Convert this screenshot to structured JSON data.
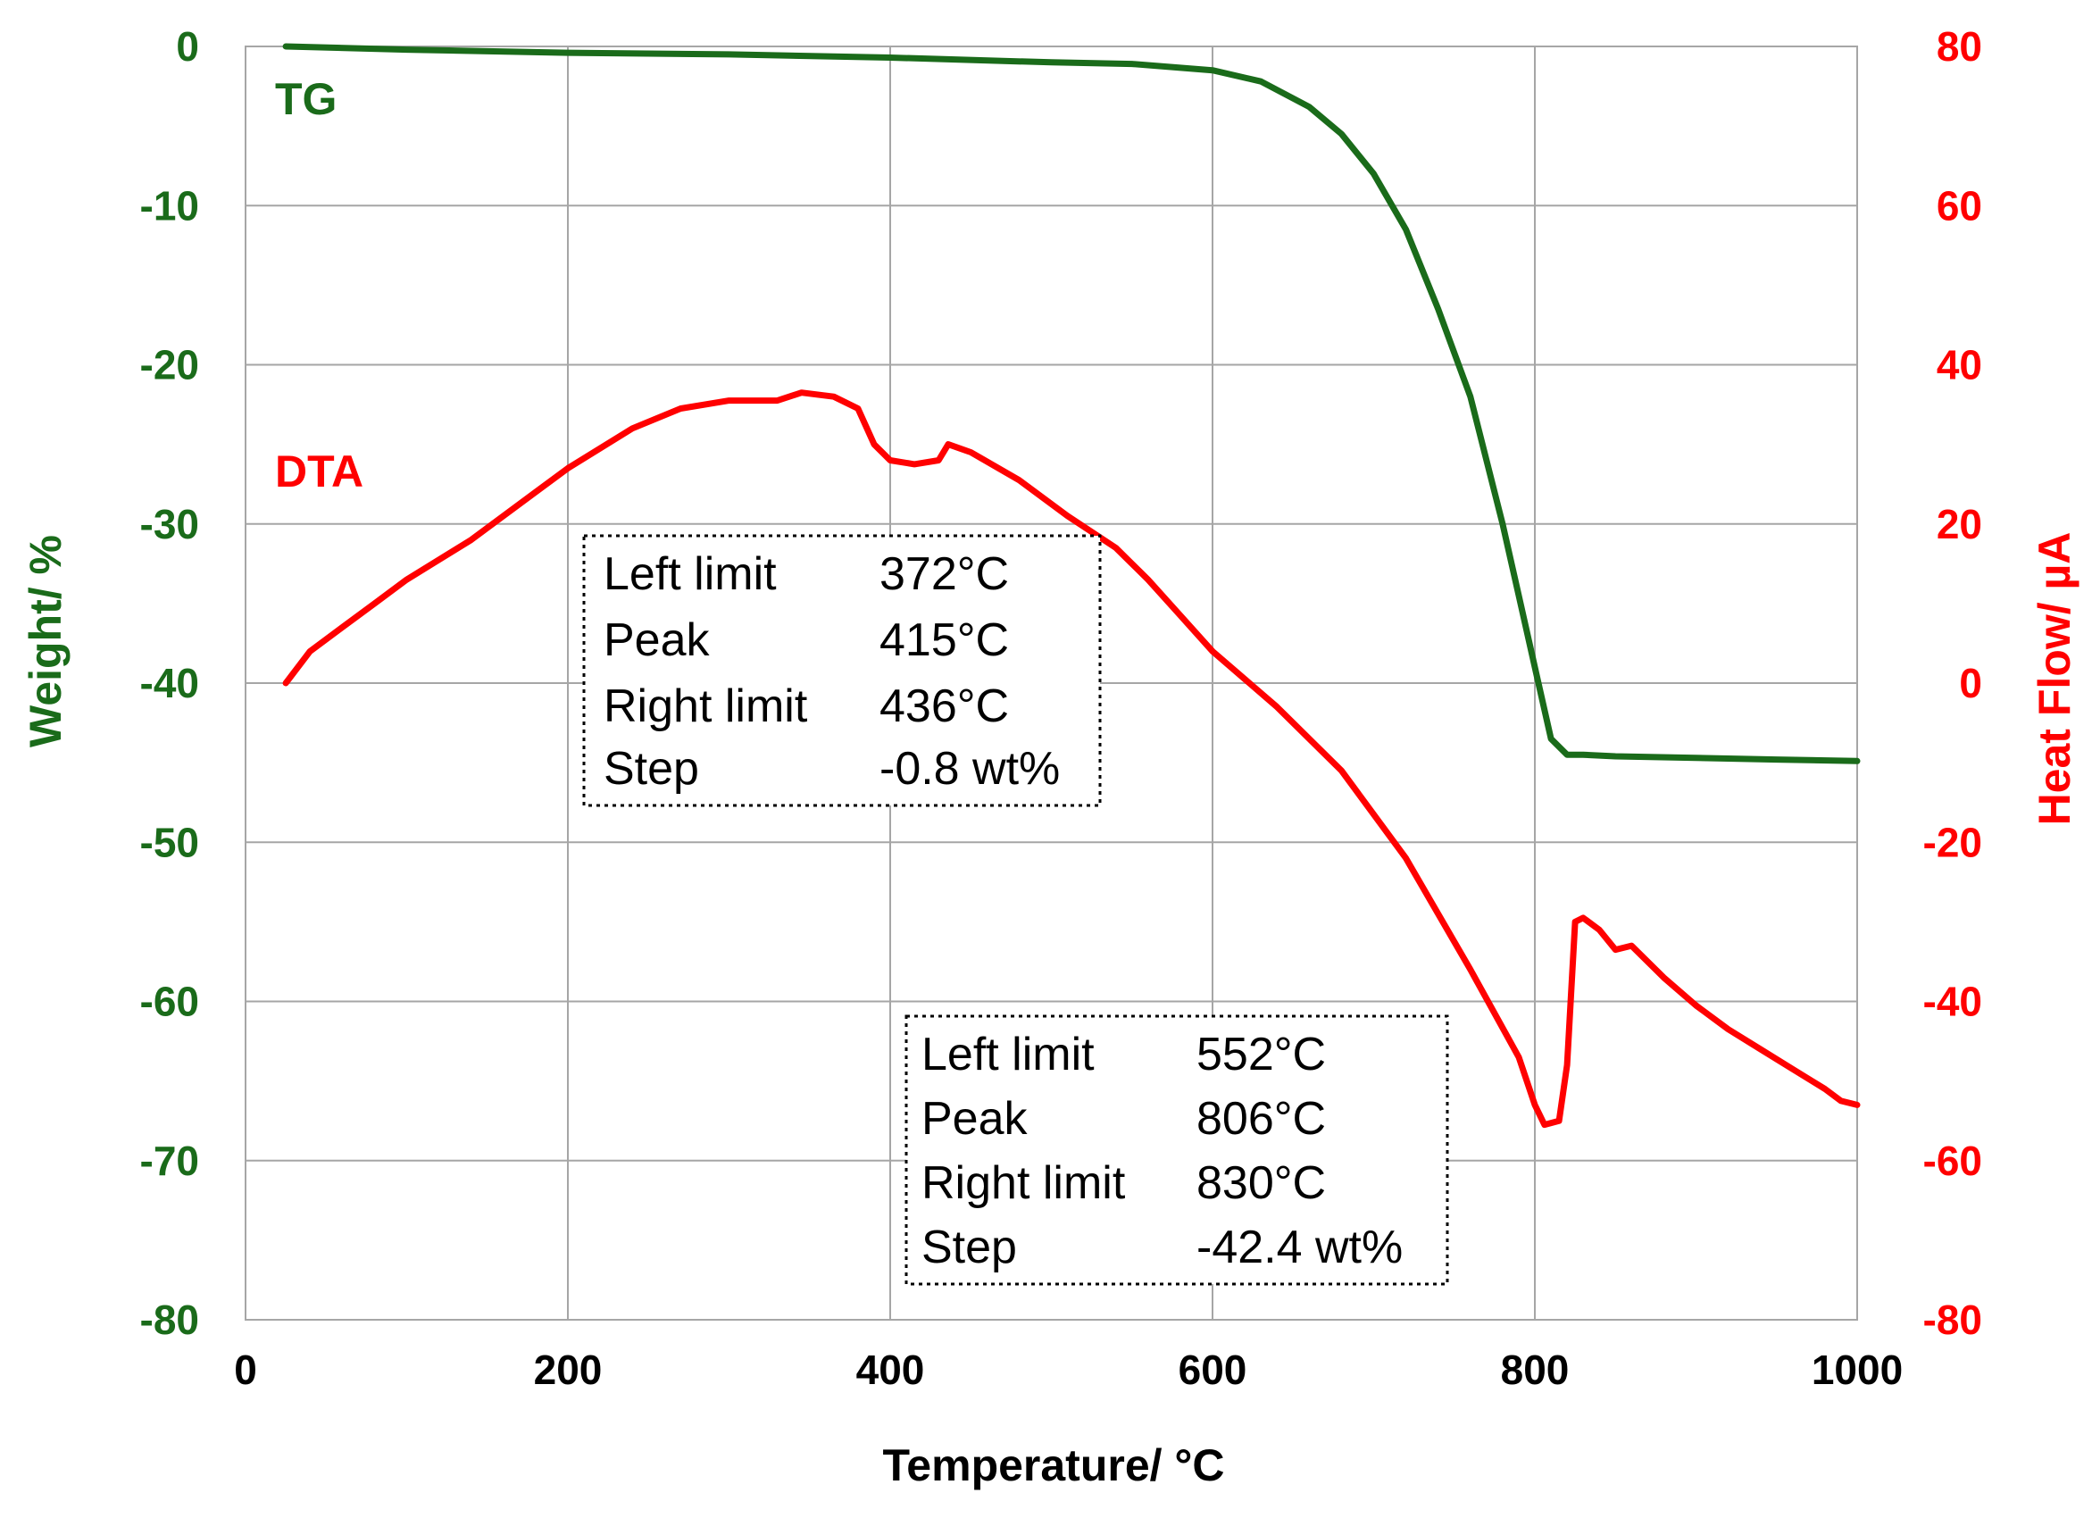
{
  "chart_data": {
    "type": "line",
    "xlabel": "Temperature/ °C",
    "ylabel_left": "Weight/ %",
    "ylabel_right": "Heat Flow/ µA",
    "xlim": [
      0,
      1000
    ],
    "ylim_left": [
      -80,
      0
    ],
    "ylim_right": [
      -80,
      80
    ],
    "x_ticks": [
      "0",
      "200",
      "400",
      "600",
      "800",
      "1000"
    ],
    "y_left_ticks": [
      "0",
      "-10",
      "-20",
      "-30",
      "-40",
      "-50",
      "-60",
      "-70",
      "-80"
    ],
    "y_right_ticks": [
      "80",
      "60",
      "40",
      "20",
      "0",
      "-20",
      "-40",
      "-60",
      "-80"
    ],
    "grid": true,
    "colors": {
      "tg": "#1a6b1a",
      "dta": "#ff0000",
      "grid": "#a6a6a6",
      "axis_text": "#000000"
    },
    "series": [
      {
        "name": "TG",
        "axis": "left",
        "x": [
          25,
          100,
          200,
          300,
          400,
          500,
          550,
          600,
          630,
          660,
          680,
          700,
          720,
          740,
          760,
          780,
          790,
          800,
          810,
          820,
          830,
          850,
          900,
          950,
          1000
        ],
        "y": [
          0,
          -0.2,
          -0.4,
          -0.5,
          -0.7,
          -1.0,
          -1.1,
          -1.5,
          -2.2,
          -3.8,
          -5.5,
          -8.0,
          -11.5,
          -16.5,
          -22.0,
          -30.0,
          -34.5,
          -39.0,
          -43.5,
          -44.5,
          -44.5,
          -44.6,
          -44.7,
          -44.8,
          -44.9
        ]
      },
      {
        "name": "DTA",
        "axis": "right",
        "x": [
          25,
          40,
          60,
          80,
          100,
          140,
          180,
          200,
          240,
          270,
          300,
          330,
          345,
          365,
          380,
          390,
          400,
          415,
          430,
          436,
          450,
          480,
          510,
          540,
          560,
          580,
          600,
          640,
          680,
          720,
          760,
          790,
          800,
          806,
          815,
          820,
          825,
          830,
          840,
          850,
          860,
          880,
          900,
          920,
          940,
          960,
          980,
          990,
          1000
        ],
        "y": [
          0,
          4,
          7,
          10,
          13,
          18,
          24,
          27,
          32,
          34.5,
          35.5,
          35.5,
          36.5,
          36,
          34.5,
          30,
          28,
          27.5,
          28,
          30,
          29,
          25.5,
          21,
          17,
          13,
          8.5,
          4,
          -3,
          -11,
          -22,
          -36,
          -47,
          -53,
          -55.5,
          -55,
          -48,
          -30,
          -29.5,
          -31,
          -33.5,
          -33,
          -37,
          -40.5,
          -43.5,
          -46,
          -48.5,
          -51,
          -52.5,
          -53
        ]
      }
    ],
    "labels": {
      "tg": "TG",
      "dta": "DTA"
    },
    "annotations": [
      {
        "rows": [
          {
            "label": "Left limit",
            "value": "372°C"
          },
          {
            "label": "Peak",
            "value": "415°C"
          },
          {
            "label": "Right limit",
            "value": "436°C"
          },
          {
            "label": "Step",
            "value": "-0.8 wt%"
          }
        ]
      },
      {
        "rows": [
          {
            "label": "Left limit",
            "value": "552°C"
          },
          {
            "label": "Peak",
            "value": "806°C"
          },
          {
            "label": "Right limit",
            "value": "830°C"
          },
          {
            "label": "Step",
            "value": "-42.4 wt%"
          }
        ]
      }
    ]
  }
}
